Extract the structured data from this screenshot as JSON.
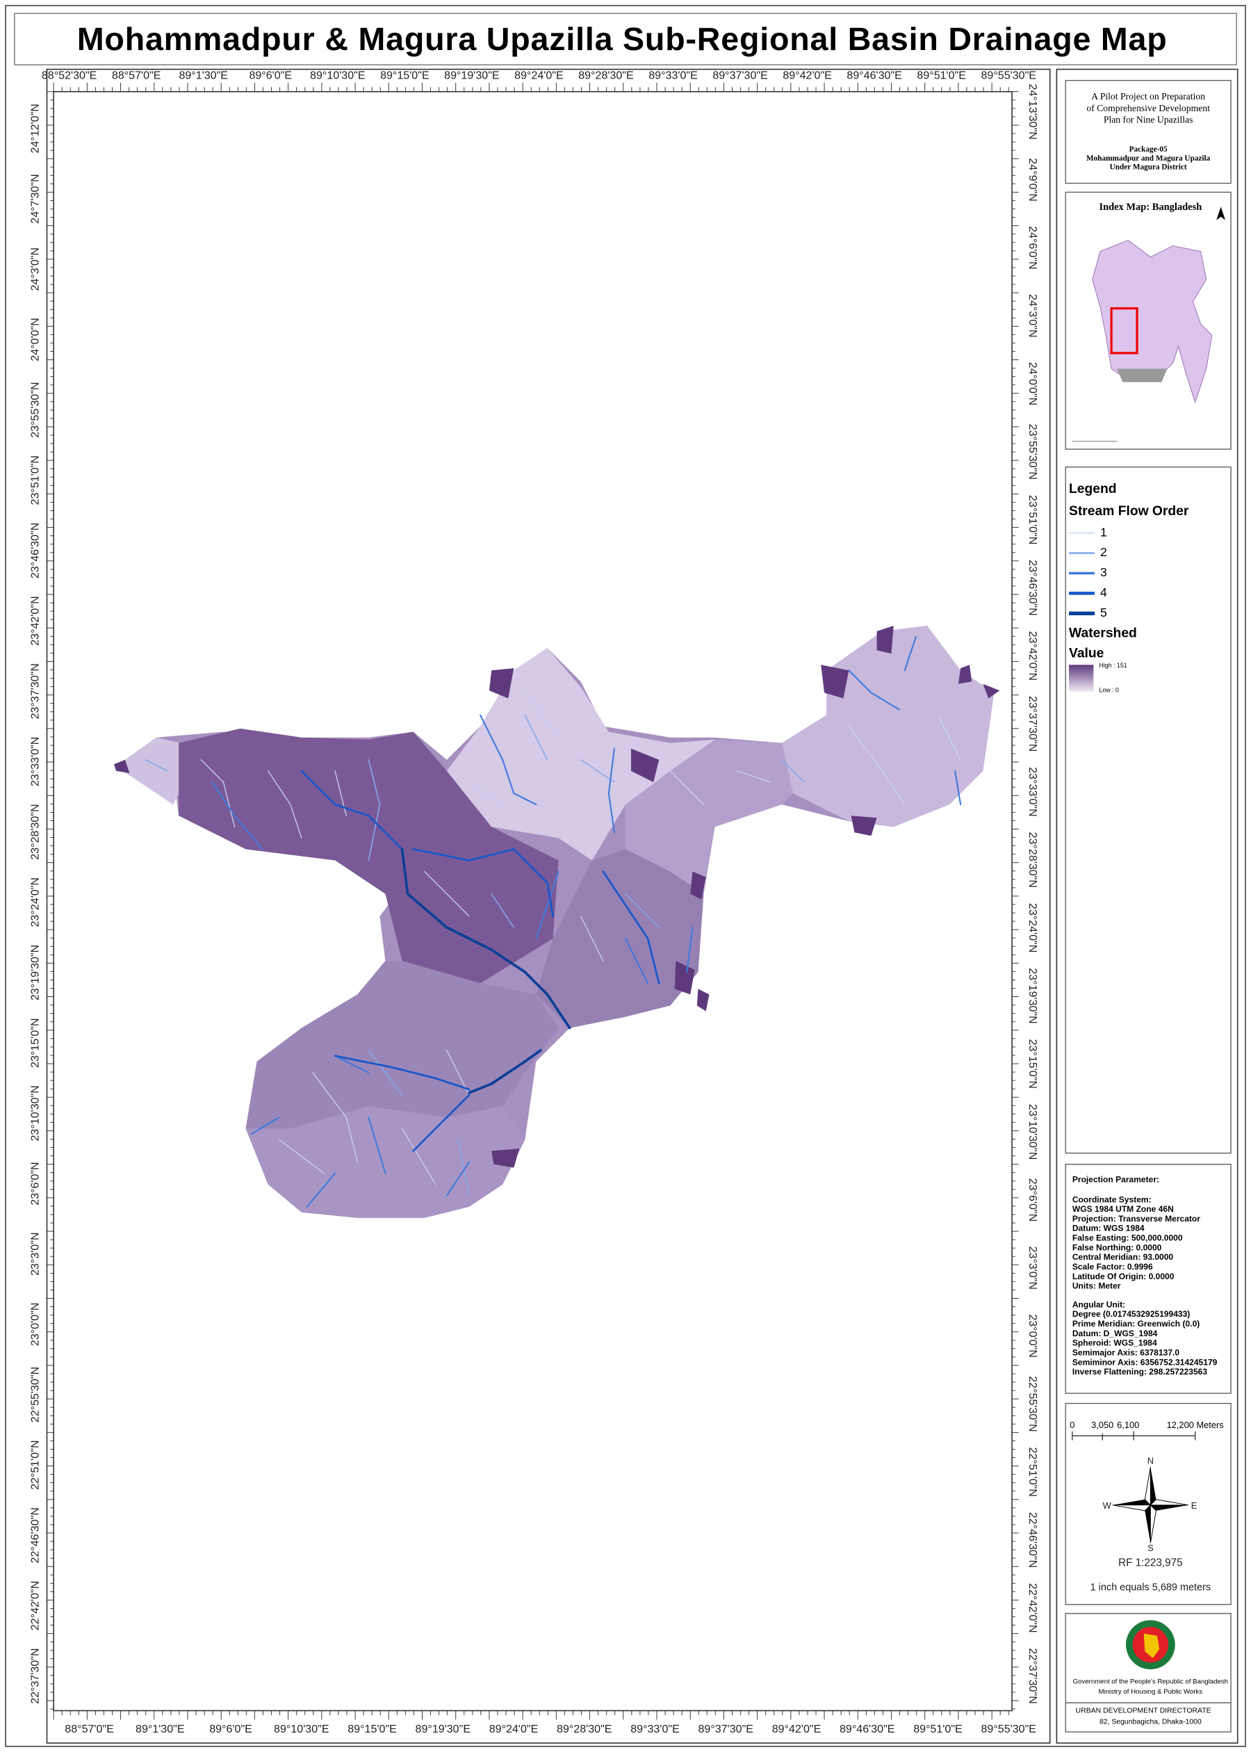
{
  "title": "Mohammadpur & Magura Upazilla Sub-Regional Basin Drainage Map",
  "map": {
    "top_labels": [
      "88°52'30\"E",
      "88°57'0\"E",
      "89°1'30\"E",
      "89°6'0\"E",
      "89°10'30\"E",
      "89°15'0\"E",
      "89°19'30\"E",
      "89°24'0\"E",
      "89°28'30\"E",
      "89°33'0\"E",
      "89°37'30\"E",
      "89°42'0\"E",
      "89°46'30\"E",
      "89°51'0\"E",
      "89°55'30\"E"
    ],
    "bottom_labels": [
      "88°57'0\"E",
      "89°1'30\"E",
      "89°6'0\"E",
      "89°10'30\"E",
      "89°15'0\"E",
      "89°19'30\"E",
      "89°24'0\"E",
      "89°28'30\"E",
      "89°33'0\"E",
      "89°37'30\"E",
      "89°42'0\"E",
      "89°46'30\"E",
      "89°51'0\"E",
      "89°55'30\"E"
    ],
    "left_labels": [
      "24°12'0\"N",
      "24°7'30\"N",
      "24°3'0\"N",
      "24°0'0\"N",
      "23°55'30\"N",
      "23°51'0\"N",
      "23°46'30\"N",
      "23°42'0\"N",
      "23°37'30\"N",
      "23°33'0\"N",
      "23°28'30\"N",
      "23°24'0\"N",
      "23°19'30\"N",
      "23°15'0\"N",
      "23°10'30\"N",
      "23°6'0\"N",
      "23°3'0\"N",
      "23°0'0\"N",
      "22°55'30\"N",
      "22°51'0\"N",
      "22°46'30\"N",
      "22°42'0\"N",
      "22°37'30\"N"
    ],
    "right_labels": [
      "24°13'30\"N",
      "24°9'0\"N",
      "24°6'0\"N",
      "24°3'0\"N",
      "24°0'0\"N",
      "23°55'30\"N",
      "23°51'0\"N",
      "23°46'30\"N",
      "23°42'0\"N",
      "23°37'30\"N",
      "23°33'0\"N",
      "23°28'30\"N",
      "23°24'0\"N",
      "23°19'30\"N",
      "23°15'0\"N",
      "23°10'30\"N",
      "23°6'0\"N",
      "23°3'0\"N",
      "23°0'0\"N",
      "22°55'30\"N",
      "22°51'0\"N",
      "22°46'30\"N",
      "22°42'0\"N",
      "22°37'30\"N"
    ]
  },
  "project": {
    "lines": [
      "A Pilot Project on Preparation",
      "of Comprehensive Development",
      "Plan for Nine Upazillas"
    ],
    "package": [
      "Package-05",
      "Mohammadpur and Magura Upazila",
      "Under Magura District"
    ]
  },
  "index_map": {
    "title": "Index Map: Bangladesh"
  },
  "legend": {
    "title": "Legend",
    "stream_title": "Stream Flow Order",
    "stream_orders": [
      "1",
      "2",
      "3",
      "4",
      "5"
    ],
    "stream_colors": [
      "#c8d6f4",
      "#82a9ec",
      "#3d7ade",
      "#1658cc",
      "#0b3f99"
    ],
    "watershed_title": "Watershed",
    "value_title": "Value",
    "high": "High : 151",
    "low": "Low : 0"
  },
  "projection": {
    "heading": "Projection Parameter:",
    "coordinate_lines": [
      "Coordinate System:",
      "WGS 1984 UTM Zone 46N",
      "Projection: Transverse Mercator",
      "Datum: WGS 1984",
      "False Easting: 500,000.0000",
      "False Northing: 0.0000",
      "Central Meridian: 93.0000",
      "Scale Factor: 0.9996",
      "Latitude Of Origin: 0.0000",
      "Units: Meter"
    ],
    "angular_lines": [
      "Angular Unit:",
      "Degree (0.0174532925199433)",
      "Prime Meridian: Greenwich (0.0)",
      "Datum: D_WGS_1984",
      "Spheroid: WGS_1984",
      "Semimajor Axis: 6378137.0",
      "Semiminor Axis: 6356752.314245179",
      "Inverse Flattening: 298.257223563"
    ]
  },
  "scale": {
    "labels": [
      "0",
      "3,050",
      "6,100",
      "12,200 Meters"
    ],
    "north": "N",
    "west": "W",
    "east": "E",
    "south": "S",
    "rf": "RF 1:223,975",
    "inch": "1 inch equals 5,689 meters"
  },
  "footer": {
    "government": "Government of the People's Republic of Bangladesh",
    "ministry": "Ministry of Housing & Public Works",
    "directorate": "URBAN DEVELOPMENT DIRECTORATE",
    "address": "82, Segunbagicha, Dhaka-1000"
  }
}
